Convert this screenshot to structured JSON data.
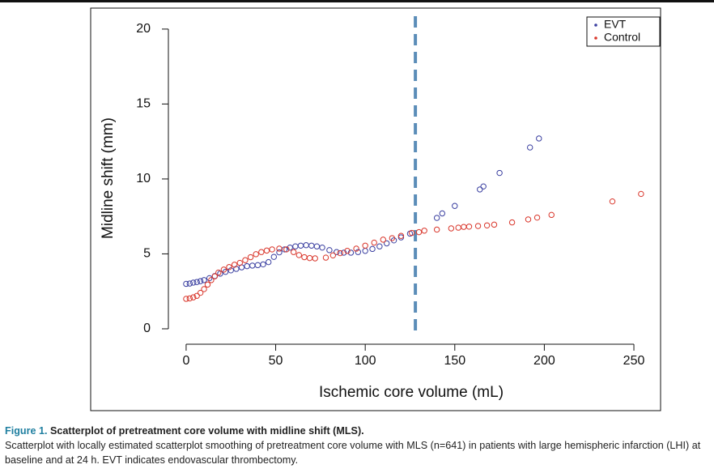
{
  "chart_data": {
    "type": "scatter",
    "xlabel": "Ischemic core volume (mL)",
    "ylabel": "Midline shift (mm)",
    "xlim": [
      -53.3,
      264.9
    ],
    "ylim": [
      -5.46,
      21.4
    ],
    "xticks": [
      0,
      50,
      100,
      150,
      200,
      250
    ],
    "yticks": [
      0,
      5,
      10,
      15,
      20
    ],
    "vline": {
      "x": 128,
      "color": "#5b8db8"
    },
    "legend": "top-right",
    "series": [
      {
        "name": "EVT",
        "color": "#3a3fa0",
        "x": [
          0,
          2,
          4,
          6,
          8,
          10,
          13,
          16,
          19,
          22,
          25,
          28,
          31,
          34,
          37,
          40,
          43,
          46,
          49,
          52,
          55,
          58,
          61,
          64,
          67,
          70,
          73,
          76,
          80,
          84,
          88,
          92,
          96,
          100,
          104,
          108,
          112,
          116,
          120,
          125,
          140,
          143,
          150,
          164,
          166,
          175,
          192,
          197
        ],
        "values": [
          3.0,
          3.02,
          3.08,
          3.12,
          3.18,
          3.25,
          3.38,
          3.52,
          3.68,
          3.8,
          3.9,
          4.0,
          4.1,
          4.18,
          4.22,
          4.25,
          4.3,
          4.45,
          4.8,
          5.1,
          5.3,
          5.42,
          5.5,
          5.55,
          5.58,
          5.55,
          5.5,
          5.42,
          5.25,
          5.12,
          5.08,
          5.08,
          5.12,
          5.2,
          5.33,
          5.5,
          5.7,
          5.9,
          6.1,
          6.35,
          7.4,
          7.7,
          8.2,
          9.3,
          9.5,
          10.4,
          12.1,
          12.7
        ]
      },
      {
        "name": "Control",
        "color": "#d9362b",
        "x": [
          0,
          2,
          4,
          6,
          8,
          10,
          12,
          14,
          16,
          18,
          21,
          24,
          27,
          30,
          33,
          36,
          39,
          42,
          45,
          48,
          52,
          56,
          60,
          63,
          66,
          69,
          72,
          78,
          82,
          86,
          90,
          95,
          100,
          105,
          110,
          115,
          120,
          126,
          130,
          133,
          140,
          148,
          152,
          155,
          158,
          163,
          168,
          172,
          182,
          191,
          196,
          204,
          238,
          254
        ],
        "values": [
          2.0,
          2.03,
          2.1,
          2.2,
          2.4,
          2.65,
          2.95,
          3.25,
          3.5,
          3.75,
          3.95,
          4.12,
          4.28,
          4.4,
          4.58,
          4.78,
          4.98,
          5.12,
          5.22,
          5.3,
          5.35,
          5.3,
          5.12,
          4.92,
          4.78,
          4.72,
          4.7,
          4.75,
          4.9,
          5.05,
          5.2,
          5.35,
          5.55,
          5.75,
          5.95,
          6.05,
          6.2,
          6.4,
          6.45,
          6.55,
          6.62,
          6.7,
          6.75,
          6.8,
          6.82,
          6.86,
          6.9,
          6.95,
          7.1,
          7.3,
          7.42,
          7.6,
          8.5,
          9.0
        ]
      }
    ]
  },
  "caption": {
    "label": "Figure 1.",
    "title": "Scatterplot of pretreatment core volume with midline shift (MLS).",
    "text": "Scatterplot with locally estimated scatterplot smoothing of pretreatment core volume with MLS (n=641) in patients with large hemispheric infarction (LHI) at baseline and at 24 h. EVT indicates endovascular thrombectomy."
  }
}
